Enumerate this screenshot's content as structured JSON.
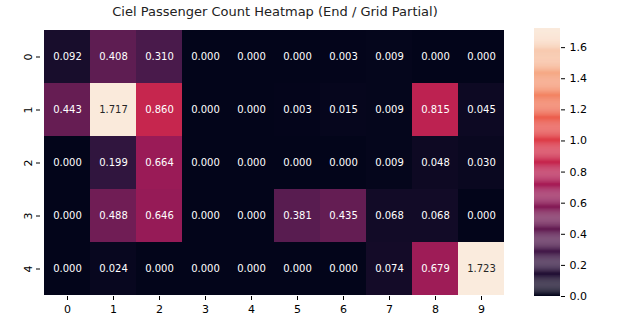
{
  "chart_data": {
    "type": "heatmap",
    "title": "Ciel Passenger Count Heatmap (End / Grid Partial)",
    "x": [
      0,
      1,
      2,
      3,
      4,
      5,
      6,
      7,
      8,
      9
    ],
    "y": [
      0,
      1,
      2,
      3,
      4
    ],
    "values": [
      [
        0.092,
        0.408,
        0.31,
        0,
        0,
        0,
        0.003,
        0.009,
        0,
        0
      ],
      [
        0.443,
        1.717,
        0.86,
        0,
        0,
        0.003,
        0.015,
        0.009,
        0.815,
        0.045
      ],
      [
        0,
        0.199,
        0.664,
        0,
        0,
        0,
        0,
        0.009,
        0.048,
        0.03
      ],
      [
        0,
        0.488,
        0.646,
        0,
        0,
        0.381,
        0.435,
        0.068,
        0.068,
        0
      ],
      [
        0,
        0.024,
        0,
        0,
        0,
        0,
        0,
        0.074,
        0.679,
        1.723
      ]
    ],
    "value_labels": [
      [
        "0.092",
        "0.408",
        "0.310",
        "0.000",
        "0.000",
        "0.000",
        "0.003",
        "0.009",
        "0.000",
        "0.000"
      ],
      [
        "0.443",
        "1.717",
        "0.860",
        "0.000",
        "0.000",
        "0.003",
        "0.015",
        "0.009",
        "0.815",
        "0.045"
      ],
      [
        "0.000",
        "0.199",
        "0.664",
        "0.000",
        "0.000",
        "0.000",
        "0.000",
        "0.009",
        "0.048",
        "0.030"
      ],
      [
        "0.000",
        "0.488",
        "0.646",
        "0.000",
        "0.000",
        "0.381",
        "0.435",
        "0.068",
        "0.068",
        "0.000"
      ],
      [
        "0.000",
        "0.024",
        "0.000",
        "0.000",
        "0.000",
        "0.000",
        "0.000",
        "0.074",
        "0.679",
        "1.723"
      ]
    ],
    "data_labels": true,
    "colorbar": {
      "range": [
        0,
        1.723
      ],
      "ticks": [
        {
          "value": 0,
          "label": "0.0"
        },
        0.2,
        0.4,
        0.6,
        0.8,
        {
          "value": 1,
          "label": "1.0"
        },
        1.2,
        1.4,
        1.6
      ]
    }
  }
}
